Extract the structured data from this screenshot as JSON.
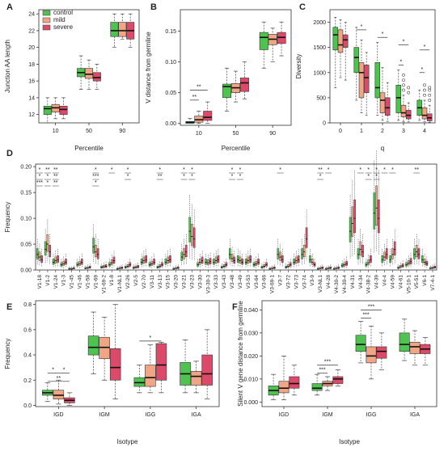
{
  "colors": {
    "control": "#4fc34f",
    "mild": "#f0a584",
    "severe": "#dc4a6a",
    "outlier": "#444444"
  },
  "chart_data": [
    {
      "panel": "A",
      "type": "box",
      "ylabel": "Junction AA length",
      "xlabel": "Percentile",
      "categories": [
        "10",
        "50",
        "90"
      ],
      "yticks": [
        "12",
        "14",
        "16",
        "18",
        "20",
        "22",
        "24"
      ],
      "ylim": [
        11,
        24.5
      ],
      "legend": {
        "position": "top-left",
        "labels": [
          "control",
          "mild",
          "severe"
        ]
      },
      "series": [
        {
          "group": "control",
          "boxes": [
            [
              11,
              12,
              12.7,
              13,
              14
            ],
            [
              15,
              16.5,
              17,
              17.5,
              19
            ],
            [
              20,
              21.3,
              22,
              23,
              24
            ]
          ]
        },
        {
          "group": "mild",
          "boxes": [
            [
              11.5,
              12.3,
              12.8,
              13.2,
              14
            ],
            [
              15,
              16.3,
              16.8,
              17.5,
              18.5
            ],
            [
              21,
              21.3,
              22,
              23,
              24
            ]
          ]
        },
        {
          "group": "severe",
          "boxes": [
            [
              11.5,
              12,
              12.6,
              13,
              14
            ],
            [
              15,
              16,
              16.4,
              17,
              18
            ],
            [
              20,
              21,
              22,
              23,
              24
            ]
          ]
        }
      ],
      "annotations": []
    },
    {
      "panel": "B",
      "type": "box",
      "ylabel": "V distance from germline",
      "xlabel": "Percentile",
      "categories": [
        "10",
        "50",
        "90"
      ],
      "yticks": [
        "0.00",
        "0.05",
        "0.10",
        "0.15"
      ],
      "ylim": [
        -0.003,
        0.185
      ],
      "series": [
        {
          "group": "control",
          "boxes": [
            [
              0,
              0,
              0.002,
              0.003,
              0.008
            ],
            [
              0.02,
              0.042,
              0.06,
              0.064,
              0.09
            ],
            [
              0.09,
              0.12,
              0.14,
              0.148,
              0.165
            ]
          ]
        },
        {
          "group": "mild",
          "boxes": [
            [
              0,
              0.002,
              0.006,
              0.012,
              0.02
            ],
            [
              0.035,
              0.05,
              0.058,
              0.065,
              0.085
            ],
            [
              0.1,
              0.128,
              0.137,
              0.145,
              0.155
            ]
          ]
        },
        {
          "group": "severe",
          "boxes": [
            [
              0,
              0.005,
              0.01,
              0.02,
              0.035
            ],
            [
              0.04,
              0.052,
              0.066,
              0.074,
              0.1
            ],
            [
              0.11,
              0.13,
              0.14,
              0.148,
              0.165
            ]
          ]
        }
      ],
      "annotations": [
        {
          "category": "10",
          "from": 0,
          "to": 1,
          "y": 0.038,
          "label": "**"
        },
        {
          "category": "10",
          "from": 0,
          "to": 2,
          "y": 0.054,
          "label": "**"
        }
      ]
    },
    {
      "panel": "C",
      "type": "box",
      "ylabel": "Diversity",
      "xlabel": "q",
      "categories": [
        "0",
        "1",
        "2",
        "3",
        "4"
      ],
      "yticks": [
        "0",
        "500",
        "1000",
        "1500",
        "2000"
      ],
      "ylim": [
        0,
        2250
      ],
      "series": [
        {
          "group": "control",
          "boxes": [
            [
              700,
              1450,
              1750,
              1900,
              2100
            ],
            [
              450,
              1000,
              1300,
              1500,
              1900
            ],
            [
              150,
              500,
              700,
              1200,
              1600
            ],
            [
              50,
              200,
              500,
              750,
              1050
            ],
            [
              50,
              150,
              300,
              450,
              650
            ]
          ]
        },
        {
          "group": "mild",
          "boxes": [
            [
              900,
              1400,
              1550,
              1850,
              2050
            ],
            [
              200,
              500,
              1000,
              1200,
              1650
            ],
            [
              50,
              200,
              450,
              600,
              1100
            ],
            [
              20,
              120,
              200,
              350,
              550
            ],
            [
              20,
              80,
              150,
              300,
              450
            ]
          ]
        },
        {
          "group": "severe",
          "boxes": [
            [
              850,
              1500,
              1650,
              1750,
              2000
            ],
            [
              150,
              600,
              900,
              1150,
              1400
            ],
            [
              30,
              150,
              300,
              500,
              800
            ],
            [
              20,
              80,
              150,
              250,
              400
            ],
            [
              10,
              40,
              100,
              180,
              350
            ]
          ]
        }
      ],
      "outliers": [
        {
          "category": "3",
          "group": "mild",
          "values": [
            650,
            750,
            850,
            950
          ]
        },
        {
          "category": "3",
          "group": "severe",
          "values": [
            600,
            700
          ]
        },
        {
          "category": "4",
          "group": "mild",
          "values": [
            550,
            650,
            750
          ]
        },
        {
          "category": "4",
          "group": "severe",
          "values": [
            450,
            550,
            650,
            700
          ]
        }
      ],
      "annotations": [
        {
          "category": "1",
          "from": 0,
          "to": 2,
          "y": 1850,
          "label": "*"
        },
        {
          "category": "2",
          "from": 0,
          "to": 2,
          "y": 1700,
          "label": "*"
        },
        {
          "category": "3",
          "from": 0,
          "to": 1,
          "y": 1150,
          "label": "*"
        },
        {
          "category": "3",
          "from": 0,
          "to": 2,
          "y": 1550,
          "label": "*"
        },
        {
          "category": "4",
          "from": 0,
          "to": 1,
          "y": 1000,
          "label": "*"
        },
        {
          "category": "4",
          "from": 0,
          "to": 2,
          "y": 1450,
          "label": "*"
        }
      ]
    },
    {
      "panel": "D",
      "type": "box",
      "ylabel": "Frequency",
      "xlabel": "",
      "categories": [
        "V1-18",
        "V1-2",
        "V1-24",
        "V1-3",
        "V1-45",
        "V1-46",
        "V1-58",
        "V1-69",
        "V1-69-2",
        "V1-8",
        "V1-NL1",
        "V2-26",
        "V2-5",
        "V2-70",
        "V3-11",
        "V3-13",
        "V3-15",
        "V3-20",
        "V3-21",
        "V3-23",
        "V3-30",
        "V3-30-3",
        "V3-33",
        "V3-43",
        "V3-48",
        "V3-49",
        "V3-53",
        "V3-64",
        "V3-66",
        "V3-69-1",
        "V3-7",
        "V3-72",
        "V3-73",
        "V3-74",
        "V3-9",
        "V3-NL1",
        "V4-28",
        "V4-30-2",
        "V4-30-4",
        "V4-31",
        "V4-34",
        "V4-38-2",
        "V4-39",
        "V4-4",
        "V4-59",
        "V4-61",
        "V5-10-1",
        "V5-51",
        "V6-1",
        "V7-4-1"
      ],
      "yticks": [
        "0.00",
        "0.05",
        "0.10",
        "0.15",
        "0.20"
      ],
      "ylim": [
        0,
        0.205
      ],
      "medians": {
        "control": [
          0.03,
          0.04,
          0.015,
          0.01,
          0.002,
          0.01,
          0.003,
          0.045,
          0.005,
          0.01,
          0.002,
          0.005,
          0.004,
          0.015,
          0.01,
          0.005,
          0.015,
          0.002,
          0.025,
          0.075,
          0.01,
          0.015,
          0.015,
          0.005,
          0.03,
          0.02,
          0.015,
          0.01,
          0.005,
          0.002,
          0.03,
          0.005,
          0.015,
          0.03,
          0.02,
          0.002,
          0.002,
          0.002,
          0.008,
          0.075,
          0.03,
          0.01,
          0.11,
          0.02,
          0.02,
          0.004,
          0.01,
          0.03,
          0.02,
          0.003
        ],
        "mild": [
          0.025,
          0.05,
          0.018,
          0.012,
          0.002,
          0.012,
          0.004,
          0.035,
          0.006,
          0.014,
          0.003,
          0.007,
          0.005,
          0.018,
          0.012,
          0.007,
          0.018,
          0.003,
          0.03,
          0.065,
          0.015,
          0.014,
          0.018,
          0.007,
          0.022,
          0.018,
          0.018,
          0.012,
          0.007,
          0.003,
          0.025,
          0.007,
          0.018,
          0.035,
          0.015,
          0.003,
          0.003,
          0.003,
          0.01,
          0.09,
          0.04,
          0.014,
          0.12,
          0.025,
          0.03,
          0.006,
          0.013,
          0.035,
          0.015,
          0.004
        ],
        "severe": [
          0.02,
          0.035,
          0.02,
          0.015,
          0.003,
          0.015,
          0.005,
          0.03,
          0.007,
          0.018,
          0.004,
          0.01,
          0.006,
          0.02,
          0.015,
          0.01,
          0.02,
          0.004,
          0.035,
          0.06,
          0.018,
          0.016,
          0.02,
          0.01,
          0.018,
          0.015,
          0.02,
          0.015,
          0.01,
          0.004,
          0.02,
          0.01,
          0.02,
          0.06,
          0.01,
          0.004,
          0.004,
          0.004,
          0.012,
          0.1,
          0.035,
          0.02,
          0.1,
          0.03,
          0.04,
          0.008,
          0.016,
          0.03,
          0.012,
          0.005
        ]
      },
      "stars": [
        {
          "gene": "V1-18",
          "labels": [
            "*",
            "*",
            "***"
          ]
        },
        {
          "gene": "V1-2",
          "labels": [
            "**",
            "*",
            "*"
          ]
        },
        {
          "gene": "V1-24",
          "labels": [
            "**",
            "**",
            "**"
          ]
        },
        {
          "gene": "V1-69",
          "labels": [
            "*",
            "***",
            "*"
          ]
        },
        {
          "gene": "V1-8",
          "labels": [
            "*"
          ]
        },
        {
          "gene": "V2-26",
          "labels": [
            "*",
            "*"
          ]
        },
        {
          "gene": "V3-13",
          "labels": [
            "*",
            "**"
          ]
        },
        {
          "gene": "V3-21",
          "labels": [
            "*",
            "*"
          ]
        },
        {
          "gene": "V3-23",
          "labels": [
            "*",
            "*"
          ]
        },
        {
          "gene": "V3-48",
          "labels": [
            "*",
            "*"
          ]
        },
        {
          "gene": "V3-49",
          "labels": [
            "*",
            "*"
          ]
        },
        {
          "gene": "V3-7",
          "labels": [
            "*"
          ]
        },
        {
          "gene": "V3-NL1",
          "labels": [
            "**",
            "*"
          ]
        },
        {
          "gene": "V4-28",
          "labels": [
            "*"
          ]
        },
        {
          "gene": "V4-34",
          "labels": [
            "*"
          ]
        },
        {
          "gene": "V4-38-2",
          "labels": [
            "*",
            "*"
          ]
        },
        {
          "gene": "V4-39",
          "labels": [
            "*",
            "*"
          ]
        },
        {
          "gene": "V4-4",
          "labels": [
            "*"
          ]
        },
        {
          "gene": "V4-59",
          "labels": [
            "*"
          ]
        },
        {
          "gene": "V5-51",
          "labels": [
            "**"
          ]
        }
      ]
    },
    {
      "panel": "E",
      "type": "box",
      "ylabel": "Frequency",
      "xlabel": "Isotype",
      "categories": [
        "IGD",
        "IGM",
        "IGG",
        "IGA"
      ],
      "yticks": [
        "0.0",
        "0.2",
        "0.4",
        "0.6",
        "0.8"
      ],
      "ylim": [
        -0.01,
        0.83
      ],
      "series": [
        {
          "group": "control",
          "boxes": [
            [
              0.03,
              0.08,
              0.1,
              0.12,
              0.18
            ],
            [
              0.25,
              0.4,
              0.46,
              0.55,
              0.74
            ],
            [
              0.1,
              0.15,
              0.18,
              0.22,
              0.32
            ],
            [
              0.1,
              0.16,
              0.25,
              0.34,
              0.52
            ]
          ]
        },
        {
          "group": "mild",
          "boxes": [
            [
              0.01,
              0.05,
              0.08,
              0.12,
              0.2
            ],
            [
              0.2,
              0.37,
              0.46,
              0.54,
              0.7
            ],
            [
              0.1,
              0.15,
              0.22,
              0.32,
              0.48
            ],
            [
              0.1,
              0.16,
              0.23,
              0.27,
              0.35
            ]
          ]
        },
        {
          "group": "severe",
          "boxes": [
            [
              0,
              0.02,
              0.04,
              0.06,
              0.1
            ],
            [
              0.05,
              0.2,
              0.3,
              0.45,
              0.8
            ],
            [
              0.1,
              0.2,
              0.32,
              0.49,
              0.5
            ],
            [
              0.05,
              0.16,
              0.25,
              0.4,
              0.6
            ]
          ]
        }
      ],
      "annotations": [
        {
          "category": "IGD",
          "from": 0,
          "to": 1,
          "y": 0.255,
          "label": "*"
        },
        {
          "category": "IGD",
          "from": 1,
          "to": 2,
          "y": 0.255,
          "label": "*"
        },
        {
          "category": "IGD",
          "from": 0,
          "to": 2,
          "y": 0.19,
          "label": "**"
        },
        {
          "category": "IGG",
          "from": 0,
          "to": 2,
          "y": 0.51,
          "label": "*"
        }
      ]
    },
    {
      "panel": "F",
      "type": "box",
      "ylabel": "Silent V gene distance from germline",
      "xlabel": "Isotype",
      "categories": [
        "IGD",
        "IGM",
        "IGG",
        "IGA"
      ],
      "yticks": [
        "0.000",
        "0.010",
        "0.020",
        "0.030",
        "0.040"
      ],
      "ylim": [
        -0.002,
        0.044
      ],
      "series": [
        {
          "group": "control",
          "boxes": [
            [
              0.001,
              0.003,
              0.005,
              0.007,
              0.012
            ],
            [
              0.003,
              0.005,
              0.006,
              0.008,
              0.012
            ],
            [
              0.017,
              0.022,
              0.025,
              0.029,
              0.035
            ],
            [
              0.018,
              0.022,
              0.025,
              0.03,
              0.036
            ]
          ]
        },
        {
          "group": "mild",
          "boxes": [
            [
              0.001,
              0.004,
              0.006,
              0.009,
              0.02
            ],
            [
              0.005,
              0.007,
              0.008,
              0.009,
              0.011
            ],
            [
              0.01,
              0.017,
              0.02,
              0.024,
              0.033
            ],
            [
              0.016,
              0.021,
              0.024,
              0.026,
              0.031
            ]
          ]
        },
        {
          "group": "severe",
          "boxes": [
            [
              0.003,
              0.006,
              0.008,
              0.011,
              0.016
            ],
            [
              0.007,
              0.008,
              0.01,
              0.011,
              0.014
            ],
            [
              0.014,
              0.019,
              0.022,
              0.024,
              0.03
            ],
            [
              0.016,
              0.021,
              0.023,
              0.025,
              0.028
            ]
          ]
        }
      ],
      "annotations": [
        {
          "category": "IGM",
          "from": 0,
          "to": 1,
          "y": 0.0125,
          "label": "***"
        },
        {
          "category": "IGM",
          "from": 0,
          "to": 2,
          "y": 0.016,
          "label": "***"
        },
        {
          "category": "IGG",
          "from": 0,
          "to": 1,
          "y": 0.0365,
          "label": "***"
        },
        {
          "category": "IGG",
          "from": 0,
          "to": 2,
          "y": 0.04,
          "label": "***"
        }
      ]
    }
  ]
}
